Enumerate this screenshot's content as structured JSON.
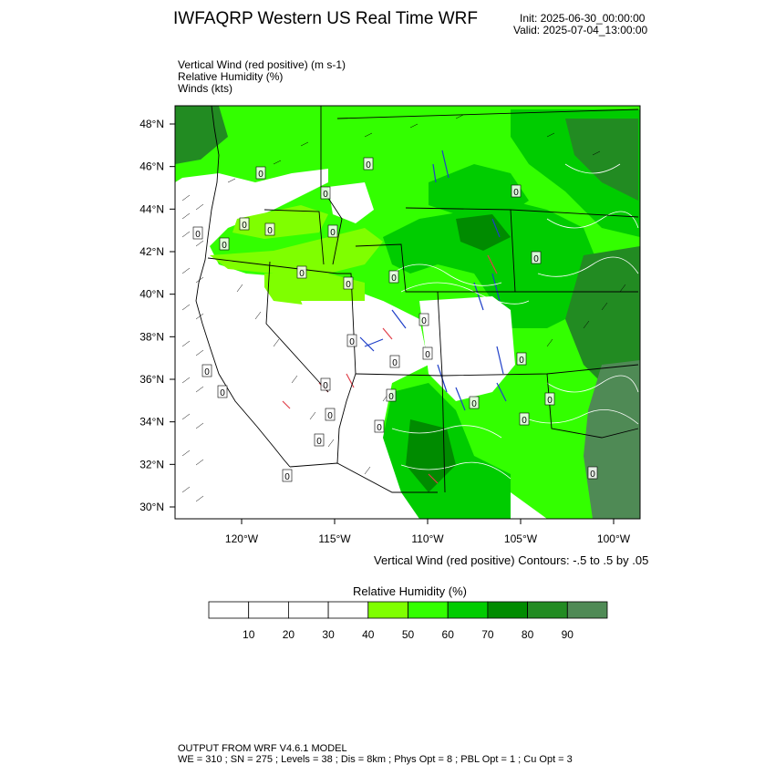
{
  "header": {
    "title": "IWFAQRP Western US Real Time WRF",
    "init": "Init: 2025-06-30_00:00:00",
    "valid": "Valid: 2025-07-04_13:00:00"
  },
  "fields": [
    "Vertical Wind (red positive)   (m s-1)",
    "Relative Humidity   (%)",
    "Winds   (kts)"
  ],
  "map": {
    "lat_labels": [
      "48°N",
      "46°N",
      "44°N",
      "42°N",
      "40°N",
      "38°N",
      "36°N",
      "34°N",
      "32°N",
      "30°N"
    ],
    "lat_values": [
      48,
      46,
      44,
      42,
      40,
      38,
      36,
      34,
      32,
      30
    ],
    "lon_labels": [
      "120°W",
      "115°W",
      "110°W",
      "105°W",
      "100°W"
    ],
    "lon_values": [
      -120,
      -115,
      -110,
      -105,
      -100
    ],
    "contour_note": "Vertical Wind (red positive) Contours: -.5 to .5 by .05",
    "zero_label": "0"
  },
  "colorbar": {
    "title": "Relative Humidity   (%)",
    "labels": [
      "10",
      "20",
      "30",
      "40",
      "50",
      "60",
      "70",
      "80",
      "90"
    ],
    "colors": [
      "#ffffff",
      "#ffffff",
      "#ffffff",
      "#ffffff",
      "#7fff00",
      "#33ff00",
      "#00cc00",
      "#008b00",
      "#228b22",
      "#4f8a55"
    ]
  },
  "footer": {
    "line1": "OUTPUT FROM WRF V4.6.1 MODEL",
    "line2": "WE = 310 ; SN = 275 ; Levels = 38 ; Dis = 8km ; Phys Opt = 8 ; PBL Opt = 1 ; Cu Opt = 3"
  }
}
